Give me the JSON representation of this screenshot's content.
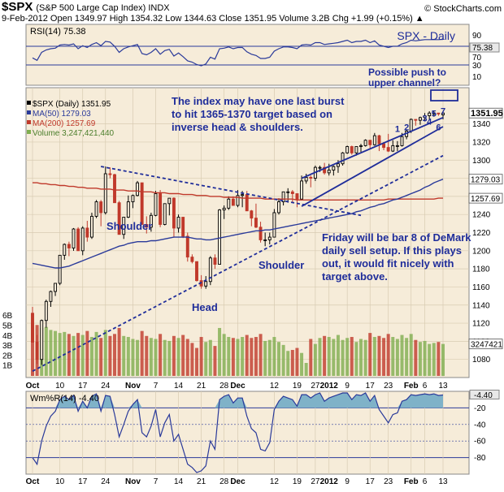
{
  "header": {
    "symbol": "$SPX",
    "description": "(S&P 500 Large Cap Index) INDX",
    "quote_line": "9-Feb-2012   Open 1349.97   High 1354.32   Low 1344.63   Close 1351.95   Volume 3.2B   Chg +1.99 (+0.15%) ▲",
    "copyright": "© StockCharts.com"
  },
  "colors": {
    "panel_bg": "#f6ecd9",
    "up_bar": "#000000",
    "down_bar": "#c0392b",
    "ma50": "#2a3a9a",
    "ma200": "#c0392b",
    "volume_up": "#7fae4f",
    "volume_down": "#c0392b",
    "annotation": "#1f2d9a"
  },
  "chart_data": {
    "type": "candlestick",
    "title": "$SPX (S&P 500 Large Cap Index) INDX",
    "legend": [
      "$SPX (Daily) 1351.95",
      "MA(50) 1279.03",
      "MA(200) 1257.69",
      "Volume 3,247,421,440"
    ],
    "ylim": [
      1060,
      1380
    ],
    "y_ticks": [
      1080,
      1100,
      1120,
      1140,
      1160,
      1180,
      1200,
      1220,
      1240,
      1260,
      1280,
      1300,
      1320,
      1340
    ],
    "volume_ticks": [
      "1B",
      "2B",
      "3B",
      "4B",
      "5B",
      "6B"
    ],
    "x_ticks": [
      "Oct",
      "10",
      "17",
      "24",
      "Nov",
      "7",
      "14",
      "21",
      "28",
      "Dec",
      "12",
      "19",
      "27",
      "2012",
      "9",
      "17",
      "23",
      "Feb",
      "6",
      "13"
    ],
    "x_tick_bar_index": [
      0,
      6,
      11,
      16,
      22,
      27,
      32,
      37,
      42,
      45,
      53,
      58,
      62,
      65,
      69,
      74,
      78,
      83,
      86,
      90
    ],
    "bar_count": 91,
    "ohlc": [
      [
        1131,
        1138,
        1099,
        1099
      ],
      [
        1099,
        1107,
        1075,
        1080
      ],
      [
        1080,
        1124,
        1074,
        1123
      ],
      [
        1123,
        1146,
        1115,
        1144
      ],
      [
        1144,
        1156,
        1138,
        1155
      ],
      [
        1155,
        1164,
        1150,
        1164
      ],
      [
        1164,
        1195,
        1162,
        1195
      ],
      [
        1195,
        1208,
        1190,
        1207
      ],
      [
        1207,
        1210,
        1194,
        1203
      ],
      [
        1203,
        1225,
        1200,
        1224
      ],
      [
        1224,
        1226,
        1200,
        1200
      ],
      [
        1200,
        1227,
        1195,
        1225
      ],
      [
        1225,
        1233,
        1210,
        1215
      ],
      [
        1215,
        1242,
        1213,
        1238
      ],
      [
        1238,
        1256,
        1236,
        1254
      ],
      [
        1254,
        1256,
        1227,
        1242
      ],
      [
        1242,
        1293,
        1240,
        1285
      ],
      [
        1285,
        1292,
        1280,
        1284
      ],
      [
        1284,
        1285,
        1255,
        1253
      ],
      [
        1253,
        1255,
        1218,
        1218
      ],
      [
        1218,
        1237,
        1213,
        1237
      ],
      [
        1237,
        1261,
        1236,
        1254
      ],
      [
        1254,
        1262,
        1247,
        1261
      ],
      [
        1261,
        1277,
        1260,
        1275
      ],
      [
        1275,
        1275,
        1229,
        1229
      ],
      [
        1229,
        1238,
        1219,
        1226
      ],
      [
        1226,
        1242,
        1221,
        1239
      ],
      [
        1239,
        1266,
        1238,
        1263
      ],
      [
        1263,
        1267,
        1226,
        1229
      ],
      [
        1229,
        1252,
        1228,
        1252
      ],
      [
        1252,
        1258,
        1239,
        1258
      ],
      [
        1258,
        1259,
        1215,
        1225
      ],
      [
        1225,
        1240,
        1220,
        1237
      ],
      [
        1237,
        1237,
        1214,
        1216
      ],
      [
        1216,
        1220,
        1188,
        1193
      ],
      [
        1193,
        1196,
        1186,
        1188
      ],
      [
        1188,
        1188,
        1166,
        1167
      ],
      [
        1167,
        1173,
        1158,
        1161
      ],
      [
        1161,
        1172,
        1158,
        1166
      ],
      [
        1166,
        1194,
        1162,
        1192
      ],
      [
        1192,
        1196,
        1180,
        1185
      ],
      [
        1185,
        1246,
        1185,
        1245
      ],
      [
        1245,
        1250,
        1235,
        1247
      ],
      [
        1247,
        1260,
        1245,
        1257
      ],
      [
        1257,
        1260,
        1250,
        1250
      ],
      [
        1250,
        1267,
        1248,
        1261
      ],
      [
        1261,
        1266,
        1248,
        1262
      ],
      [
        1262,
        1266,
        1244,
        1244
      ],
      [
        1244,
        1245,
        1227,
        1236
      ],
      [
        1236,
        1252,
        1225,
        1226
      ],
      [
        1226,
        1232,
        1209,
        1212
      ],
      [
        1212,
        1220,
        1205,
        1212
      ],
      [
        1212,
        1220,
        1207,
        1215
      ],
      [
        1215,
        1246,
        1215,
        1242
      ],
      [
        1242,
        1258,
        1240,
        1254
      ],
      [
        1254,
        1265,
        1250,
        1265
      ],
      [
        1265,
        1269,
        1253,
        1265
      ],
      [
        1265,
        1267,
        1253,
        1263
      ],
      [
        1263,
        1263,
        1248,
        1257
      ],
      [
        1257,
        1283,
        1257,
        1277
      ],
      [
        1277,
        1285,
        1274,
        1281
      ],
      [
        1281,
        1283,
        1270,
        1280
      ],
      [
        1280,
        1294,
        1277,
        1292
      ],
      [
        1292,
        1294,
        1287,
        1292
      ],
      [
        1292,
        1297,
        1284,
        1286
      ],
      [
        1286,
        1296,
        1283,
        1289
      ],
      [
        1289,
        1294,
        1283,
        1293
      ],
      [
        1293,
        1300,
        1286,
        1296
      ],
      [
        1296,
        1309,
        1294,
        1308
      ],
      [
        1308,
        1316,
        1307,
        1315
      ],
      [
        1315,
        1316,
        1306,
        1308
      ],
      [
        1308,
        1315,
        1305,
        1315
      ],
      [
        1315,
        1318,
        1309,
        1316
      ],
      [
        1316,
        1323,
        1315,
        1322
      ],
      [
        1322,
        1322,
        1313,
        1317
      ],
      [
        1317,
        1330,
        1316,
        1327
      ],
      [
        1327,
        1328,
        1310,
        1318
      ],
      [
        1318,
        1320,
        1311,
        1314
      ],
      [
        1314,
        1329,
        1309,
        1310
      ],
      [
        1310,
        1322,
        1309,
        1316
      ],
      [
        1316,
        1321,
        1310,
        1316
      ],
      [
        1316,
        1330,
        1315,
        1326
      ],
      [
        1326,
        1334,
        1323,
        1332
      ],
      [
        1332,
        1346,
        1330,
        1345
      ],
      [
        1345,
        1345,
        1338,
        1344
      ],
      [
        1344,
        1348,
        1339,
        1347
      ],
      [
        1347,
        1352,
        1343,
        1349
      ],
      [
        1349,
        1354,
        1344,
        1352
      ],
      [
        1352,
        1354,
        1348,
        1352
      ],
      [
        1352,
        1352,
        1349,
        1351
      ],
      [
        1350,
        1354,
        1345,
        1352
      ]
    ],
    "ma50": [
      1186,
      1185,
      1184,
      1183,
      1182,
      1181,
      1181,
      1182,
      1183,
      1185,
      1187,
      1189,
      1191,
      1193,
      1195,
      1197,
      1199,
      1201,
      1203,
      1205,
      1206,
      1208,
      1209,
      1210,
      1210,
      1210,
      1211,
      1211,
      1212,
      1213,
      1214,
      1215,
      1215,
      1215,
      1215,
      1214,
      1213,
      1213,
      1212,
      1212,
      1213,
      1214,
      1215,
      1216,
      1217,
      1218,
      1219,
      1220,
      1221,
      1222,
      1222,
      1223,
      1223,
      1224,
      1225,
      1226,
      1227,
      1228,
      1229,
      1230,
      1231,
      1232,
      1233,
      1234,
      1235,
      1236,
      1237,
      1238,
      1239,
      1240,
      1241,
      1243,
      1244,
      1246,
      1248,
      1249,
      1251,
      1252,
      1254,
      1256,
      1257,
      1259,
      1261,
      1263,
      1265,
      1267,
      1270,
      1272,
      1275,
      1277,
      1279
    ],
    "ma200": [
      1275,
      1275,
      1274,
      1274,
      1273,
      1273,
      1272,
      1272,
      1271,
      1271,
      1270,
      1270,
      1269,
      1269,
      1269,
      1268,
      1268,
      1268,
      1267,
      1267,
      1267,
      1266,
      1266,
      1266,
      1265,
      1265,
      1265,
      1264,
      1264,
      1264,
      1263,
      1263,
      1263,
      1262,
      1262,
      1262,
      1261,
      1261,
      1261,
      1260,
      1260,
      1260,
      1259,
      1259,
      1259,
      1259,
      1258,
      1258,
      1258,
      1258,
      1258,
      1257,
      1257,
      1257,
      1257,
      1257,
      1257,
      1257,
      1256,
      1256,
      1256,
      1256,
      1256,
      1256,
      1256,
      1256,
      1256,
      1256,
      1256,
      1256,
      1256,
      1256,
      1256,
      1256,
      1256,
      1256,
      1256,
      1256,
      1257,
      1257,
      1257,
      1257,
      1257,
      1257,
      1257,
      1257,
      1257,
      1257,
      1257,
      1258,
      1258
    ],
    "volume_billions": [
      5.3,
      5.1,
      4.8,
      4.9,
      4.6,
      4.5,
      4.3,
      4.4,
      4.2,
      4.0,
      4.3,
      4.1,
      4.5,
      3.9,
      4.4,
      3.8,
      4.6,
      4.0,
      4.2,
      4.8,
      4.0,
      3.9,
      3.7,
      3.6,
      4.5,
      4.0,
      3.8,
      3.7,
      4.2,
      3.6,
      3.5,
      4.0,
      3.8,
      4.1,
      3.7,
      3.3,
      2.8,
      3.9,
      3.4,
      3.6,
      3.0,
      4.8,
      4.2,
      3.9,
      3.8,
      3.7,
      3.9,
      4.1,
      3.8,
      3.9,
      4.2,
      3.5,
      3.6,
      3.9,
      3.4,
      3.1,
      2.5,
      2.6,
      2.8,
      2.3,
      1.3,
      3.7,
      3.2,
      3.8,
      4.0,
      3.9,
      3.7,
      4.1,
      3.6,
      3.8,
      3.9,
      3.4,
      3.7,
      3.6,
      4.3,
      3.9,
      4.0,
      3.8,
      4.2,
      3.9,
      3.7,
      4.1,
      3.8,
      4.2,
      3.6,
      3.4,
      3.5,
      3.2,
      3.3,
      3.4,
      3.2
    ],
    "trendlines": [
      {
        "name": "neckline",
        "style": "dashed",
        "from": [
          15,
          1293
        ],
        "to": [
          72,
          1239
        ]
      },
      {
        "name": "lower-support",
        "style": "dashed",
        "from": [
          0,
          1067
        ],
        "to": [
          90,
          1305
        ]
      },
      {
        "name": "channel-upper",
        "style": "solid",
        "from": [
          59,
          1280
        ],
        "to": [
          90,
          1347
        ]
      },
      {
        "name": "channel-lower",
        "style": "solid",
        "from": [
          59,
          1249
        ],
        "to": [
          90,
          1337
        ]
      }
    ],
    "demark_counts": [
      {
        "label": "1",
        "bar": 80,
        "price": 1331
      },
      {
        "label": "2",
        "bar": 82,
        "price": 1333
      },
      {
        "label": "3",
        "bar": 86,
        "price": 1343
      },
      {
        "label": "4",
        "bar": 87,
        "price": 1339
      },
      {
        "label": "5",
        "bar": 88,
        "price": 1348
      },
      {
        "label": "6",
        "bar": 89,
        "price": 1333
      },
      {
        "label": "7",
        "bar": 90,
        "price": 1351
      }
    ],
    "annotations": {
      "burst": [
        "The index may have one last burst",
        "to hit 1365-1370 target based on",
        "inverse head & shoulders."
      ],
      "push": [
        "Possible push to",
        "upper channel?"
      ],
      "demark": [
        "Friday will be bar 8 of DeMark",
        "daily sell setup. If this plays",
        "out, it would fit nicely with",
        "target above."
      ],
      "left_shoulder": "Shoulder",
      "head": "Head",
      "right_shoulder": "Shoulder"
    },
    "value_boxes": [
      {
        "label": "1351.95",
        "price": 1352,
        "emphasis": true
      },
      {
        "label": "1279.03",
        "price": 1279
      },
      {
        "label": "1257.69",
        "price": 1258
      },
      {
        "label": "3247421",
        "volume": 3.2
      }
    ],
    "panels": {
      "rsi": {
        "label": "RSI(14) 75.38",
        "caption": "SPX - Daily",
        "current": "75.38",
        "ylim": [
          0,
          100
        ],
        "levels": [
          70,
          30
        ],
        "ticks": [
          "90",
          "75.38",
          "70",
          "30",
          "10"
        ],
        "values": [
          45,
          41,
          54,
          58,
          60,
          61,
          66,
          67,
          66,
          68,
          60,
          65,
          62,
          67,
          70,
          65,
          72,
          71,
          64,
          54,
          60,
          63,
          65,
          67,
          52,
          50,
          54,
          60,
          51,
          57,
          59,
          48,
          53,
          47,
          40,
          38,
          34,
          32,
          35,
          46,
          43,
          60,
          61,
          63,
          60,
          62,
          62,
          55,
          51,
          49,
          44,
          44,
          46,
          56,
          60,
          63,
          63,
          62,
          60,
          66,
          67,
          66,
          70,
          70,
          67,
          68,
          69,
          70,
          72,
          74,
          70,
          72,
          72,
          74,
          70,
          73,
          66,
          64,
          62,
          64,
          64,
          68,
          70,
          74,
          73,
          74,
          75,
          75,
          75,
          75,
          75.38
        ]
      },
      "williams_r": {
        "label": "Wm%R(14) -4.40",
        "current": "-4.40",
        "ylim": [
          -100,
          0
        ],
        "ticks": [
          "-4.40",
          "-20",
          "-40",
          "-60",
          "-80"
        ],
        "tick_values": [
          -4.4,
          -20,
          -40,
          -60,
          -80
        ],
        "values": [
          -80,
          -88,
          -60,
          -42,
          -30,
          -24,
          -10,
          -6,
          -10,
          -5,
          -24,
          -12,
          -20,
          -6,
          -3,
          -24,
          -5,
          -6,
          -28,
          -55,
          -40,
          -24,
          -16,
          -10,
          -50,
          -55,
          -42,
          -22,
          -55,
          -38,
          -28,
          -60,
          -52,
          -70,
          -88,
          -92,
          -98,
          -96,
          -90,
          -60,
          -70,
          -10,
          -6,
          -4,
          -14,
          -8,
          -8,
          -30,
          -45,
          -50,
          -70,
          -72,
          -62,
          -22,
          -12,
          -6,
          -8,
          -10,
          -18,
          -4,
          -4,
          -8,
          -4,
          -2,
          -12,
          -8,
          -6,
          -4,
          -2,
          -2,
          -10,
          -4,
          -5,
          -2,
          -12,
          -5,
          -22,
          -30,
          -38,
          -28,
          -26,
          -12,
          -10,
          -4,
          -5,
          -4,
          -3,
          -4,
          -3,
          -5,
          -4.4
        ]
      }
    }
  }
}
